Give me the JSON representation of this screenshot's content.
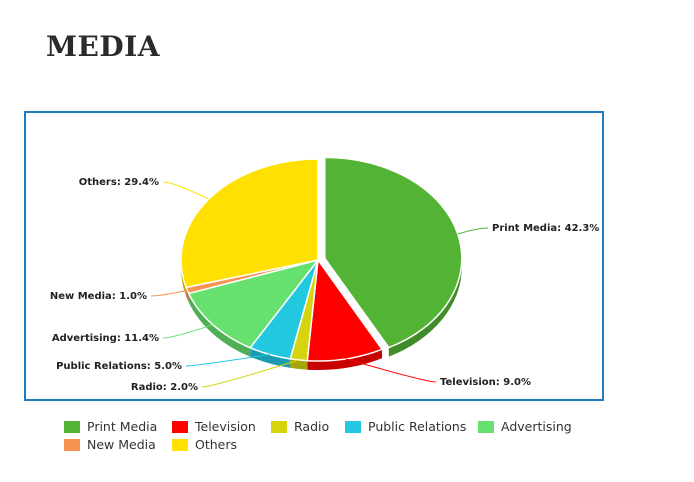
{
  "page": {
    "title": "MEDIA"
  },
  "chart_data": {
    "type": "pie",
    "title": "",
    "slices": [
      {
        "name": "Print Media",
        "value": 42.3,
        "label": "Print Media: 42.3%",
        "color": "#52b335"
      },
      {
        "name": "Television",
        "value": 9.0,
        "label": "Television: 9.0%",
        "color": "#ff0000"
      },
      {
        "name": "Radio",
        "value": 2.0,
        "label": "Radio: 2.0%",
        "color": "#d4d40f"
      },
      {
        "name": "Public Relations",
        "value": 5.0,
        "label": "Public Relations: 5.0%",
        "color": "#22c7e0"
      },
      {
        "name": "Advertising",
        "value": 11.4,
        "label": "Advertising: 11.4%",
        "color": "#66e06e"
      },
      {
        "name": "New Media",
        "value": 1.0,
        "label": "New Media: 1.0%",
        "color": "#f59452"
      },
      {
        "name": "Others",
        "value": 29.4,
        "label": "Others: 29.4%",
        "color": "#ffe000"
      }
    ],
    "exploded": [
      "Print Media"
    ],
    "legend_position": "bottom",
    "style": "3d-pie"
  }
}
